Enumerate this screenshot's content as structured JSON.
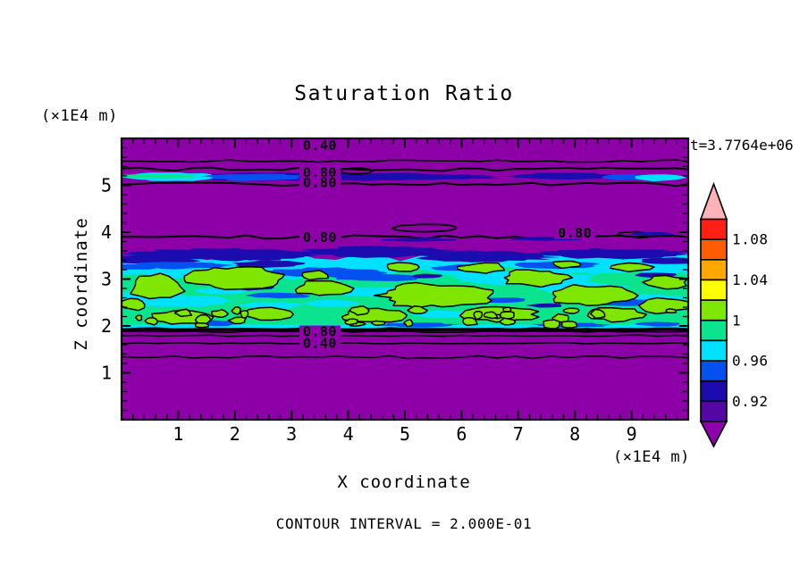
{
  "chart_data": {
    "type": "filled_contour",
    "title": "Saturation Ratio",
    "timestamp_label": "t=3.7764e+06",
    "xlabel": "X coordinate",
    "ylabel": "Z coordinate",
    "x_units_label": "(×1E4 m)",
    "y_units_label": "(×1E4 m)",
    "contour_interval_label": "CONTOUR INTERVAL = 2.000E-01",
    "contour_interval": 0.2,
    "xlim": [
      0,
      10
    ],
    "ylim": [
      0,
      6
    ],
    "x_ticks": [
      1,
      2,
      3,
      4,
      5,
      6,
      7,
      8,
      9
    ],
    "y_ticks": [
      1,
      2,
      3,
      4,
      5
    ],
    "x_minor_step": 0.2,
    "y_minor_step": 0.2,
    "grid": false,
    "colorbar": {
      "position": "right",
      "boundary_labels": [
        "1.08",
        "1.04",
        "1",
        "0.96",
        "0.92"
      ],
      "boundary_values": [
        1.08,
        1.04,
        1.0,
        0.96,
        0.92
      ],
      "segment_width": 0.02,
      "segment_colors": [
        "#ff1f14",
        "#ff5d00",
        "#ffa800",
        "#ffff00",
        "#7ee600",
        "#0be38e",
        "#00e1ff",
        "#0551f0",
        "#1c0bae",
        "#5407a2"
      ],
      "over_color": "#ffb3b9",
      "under_color": "#8d00a8"
    },
    "contour_labels": [
      {
        "text": "0.40",
        "x": 3.5,
        "z": 5.85
      },
      {
        "text": "0.80",
        "x": 3.5,
        "z": 5.27
      },
      {
        "text": "0.80",
        "x": 3.5,
        "z": 5.06
      },
      {
        "text": "0.80",
        "x": 3.5,
        "z": 3.89
      },
      {
        "text": "0.80",
        "x": 8.0,
        "z": 3.98
      },
      {
        "text": "0.80",
        "x": 3.5,
        "z": 1.88
      },
      {
        "text": "0.40",
        "x": 3.5,
        "z": 1.63
      }
    ],
    "regions": [
      {
        "z_from": 0.0,
        "z_to": 1.35,
        "value": "< 0.9",
        "appearance": "uniform purple"
      },
      {
        "z_from": 1.35,
        "z_to": 1.95,
        "value": "0.4 to 0.8",
        "appearance": "purple crossed by horizontal contour lines labeled 0.80 and 0.40"
      },
      {
        "z_from": 1.95,
        "z_to": 3.55,
        "value": "0.92 to 1.02",
        "appearance": "turbulent band: spring-green background, chartreuse patches outlined by the 1.0 contour, cyan/blue/navy streaks, navy fringe on top, cyan strip at bottom"
      },
      {
        "z_from": 3.55,
        "z_to": 4.9,
        "value": "< 0.9",
        "appearance": "purple with 0.80 contour line near z=3.9 and small dark-blue streaks"
      },
      {
        "z_from": 4.9,
        "z_to": 5.3,
        "value": "0.8 to 1.0",
        "appearance": "thin streak: green/cyan core at left fading through blue to navy; navy/blue/cyan again at right edge"
      },
      {
        "z_from": 5.3,
        "z_to": 6.0,
        "value": "< 0.9",
        "appearance": "purple with 0.40 contour at very top and stacked 0.80 contours"
      }
    ],
    "colors": {
      "background": "#ffffff",
      "text": "#000000",
      "contour_line": "#000000",
      "purple": "#8d00a8",
      "violet": "#5407a2",
      "navy": "#1c0bae",
      "blue": "#0551f0",
      "cyan": "#00e1ff",
      "spring_green": "#0be38e",
      "chartreuse": "#7ee600",
      "yellow": "#ffff00",
      "orange": "#ffa800",
      "orange_red": "#ff5d00",
      "red": "#ff1f14",
      "pink": "#ffb3b9"
    }
  }
}
